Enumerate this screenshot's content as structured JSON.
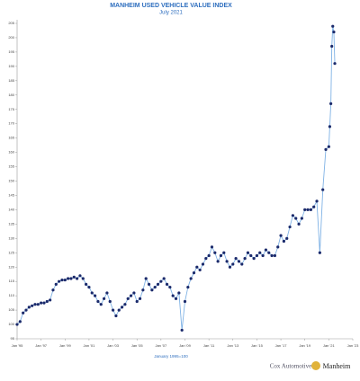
{
  "chart_data": {
    "type": "line",
    "title": "MANHEIM USED VEHICLE VALUE INDEX",
    "subtitle": "July 2021",
    "xlabel": "January 1995=100",
    "footer": {
      "left": "Cox Automotive",
      "right": "Manheim"
    },
    "line_color": "#7fb2e5",
    "marker_color": "#1b2a6b",
    "title_color": "#2f6fbf",
    "xlim": [
      1995,
      2023
    ],
    "ylim": [
      95,
      205
    ],
    "xticks": [
      {
        "value": 1995,
        "label": "Jan '95"
      },
      {
        "value": 1997,
        "label": "Jan '97"
      },
      {
        "value": 1999,
        "label": "Jan '99"
      },
      {
        "value": 2001,
        "label": "Jan '01"
      },
      {
        "value": 2003,
        "label": "Jan '03"
      },
      {
        "value": 2005,
        "label": "Jan '05"
      },
      {
        "value": 2007,
        "label": "Jan '07"
      },
      {
        "value": 2009,
        "label": "Jan '09"
      },
      {
        "value": 2011,
        "label": "Jan '11"
      },
      {
        "value": 2013,
        "label": "Jan '13"
      },
      {
        "value": 2015,
        "label": "Jan '15"
      },
      {
        "value": 2017,
        "label": "Jan '17"
      },
      {
        "value": 2019,
        "label": "Jan '19"
      },
      {
        "value": 2021,
        "label": "Jan '21"
      },
      {
        "value": 2023,
        "label": "Jan '23"
      }
    ],
    "yticks": [
      95,
      100,
      105,
      110,
      115,
      120,
      125,
      130,
      135,
      140,
      145,
      150,
      155,
      160,
      165,
      170,
      175,
      180,
      185,
      190,
      195,
      200,
      205
    ],
    "x": [
      1995.0,
      1995.25,
      1995.5,
      1995.75,
      1996.0,
      1996.25,
      1996.5,
      1996.75,
      1997.0,
      1997.25,
      1997.5,
      1997.75,
      1998.0,
      1998.25,
      1998.5,
      1998.75,
      1999.0,
      1999.25,
      1999.5,
      1999.75,
      2000.0,
      2000.25,
      2000.5,
      2000.75,
      2001.0,
      2001.25,
      2001.5,
      2001.75,
      2002.0,
      2002.25,
      2002.5,
      2002.75,
      2003.0,
      2003.25,
      2003.5,
      2003.75,
      2004.0,
      2004.25,
      2004.5,
      2004.75,
      2005.0,
      2005.25,
      2005.5,
      2005.75,
      2006.0,
      2006.25,
      2006.5,
      2006.75,
      2007.0,
      2007.25,
      2007.5,
      2007.75,
      2008.0,
      2008.25,
      2008.5,
      2008.75,
      2009.0,
      2009.25,
      2009.5,
      2009.75,
      2010.0,
      2010.25,
      2010.5,
      2010.75,
      2011.0,
      2011.25,
      2011.5,
      2011.75,
      2012.0,
      2012.25,
      2012.5,
      2012.75,
      2013.0,
      2013.25,
      2013.5,
      2013.75,
      2014.0,
      2014.25,
      2014.5,
      2014.75,
      2015.0,
      2015.25,
      2015.5,
      2015.75,
      2016.0,
      2016.25,
      2016.5,
      2016.75,
      2017.0,
      2017.25,
      2017.5,
      2017.75,
      2018.0,
      2018.25,
      2018.5,
      2018.75,
      2019.0,
      2019.25,
      2019.5,
      2019.75,
      2020.0,
      2020.25,
      2020.5,
      2020.75,
      2021.0,
      2021.08,
      2021.17,
      2021.25,
      2021.33,
      2021.42,
      2021.5
    ],
    "values": [
      100,
      101,
      104,
      105,
      106,
      106.5,
      107,
      107,
      107.5,
      107.5,
      108,
      108.5,
      112,
      114,
      115,
      115.5,
      115.5,
      116,
      116,
      116.5,
      116,
      117,
      116,
      114,
      113,
      111,
      110,
      108,
      107,
      109,
      111,
      108,
      105,
      103,
      105,
      106,
      107,
      109,
      110,
      111,
      108,
      109,
      112,
      116,
      114,
      112,
      113,
      114,
      115,
      116,
      114,
      113,
      110,
      109,
      111,
      98,
      108,
      113,
      116,
      118,
      120,
      119,
      121,
      123,
      124,
      127,
      125,
      122,
      124,
      125,
      122,
      120,
      121,
      123,
      122,
      121,
      123,
      125,
      124,
      123,
      124,
      125,
      124,
      126,
      125,
      124,
      124,
      127,
      131,
      129,
      130,
      134,
      138,
      137,
      135,
      137,
      140,
      140,
      140,
      141,
      143,
      125,
      147,
      161,
      162,
      169,
      177,
      197,
      204,
      202,
      191
    ]
  }
}
